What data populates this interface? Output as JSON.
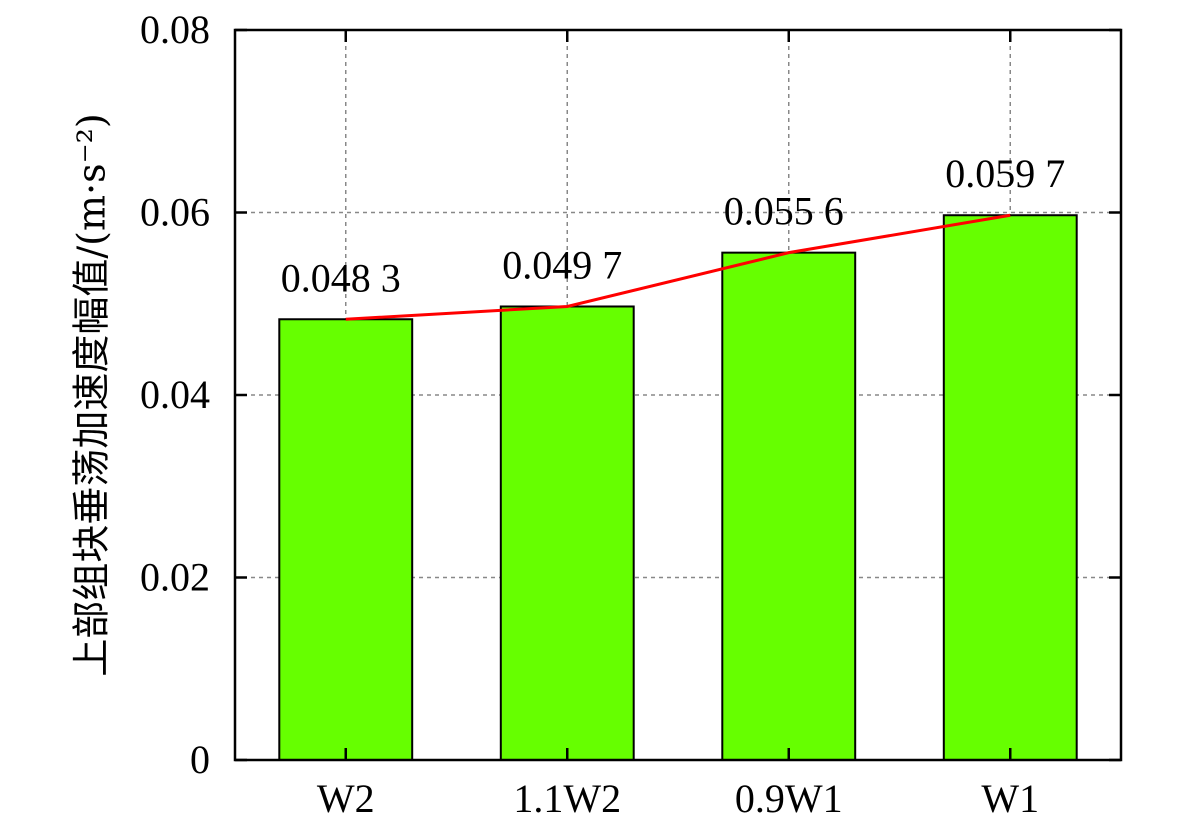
{
  "chart_data": {
    "type": "bar",
    "categories": [
      "W2",
      "1.1W2",
      "0.9W1",
      "W1"
    ],
    "values": [
      0.0483,
      0.0497,
      0.0556,
      0.0597
    ],
    "value_labels": [
      "0.048 3",
      "0.049 7",
      "0.055 6",
      "0.059 7"
    ],
    "ylabel": "上部组块垂荡加速度幅值/(m·s⁻²)",
    "ylim": [
      0,
      0.08
    ],
    "yticks": [
      0,
      0.02,
      0.04,
      0.06,
      0.08
    ],
    "ytick_labels": [
      "0",
      "0.02",
      "0.04",
      "0.06",
      "0.08"
    ],
    "grid": true,
    "grid_style": "dashed",
    "colors": {
      "bar": "#66ff00",
      "bar_edge": "#000000",
      "line": "#ff0000",
      "grid": "#888888"
    },
    "overlay_line": true
  }
}
